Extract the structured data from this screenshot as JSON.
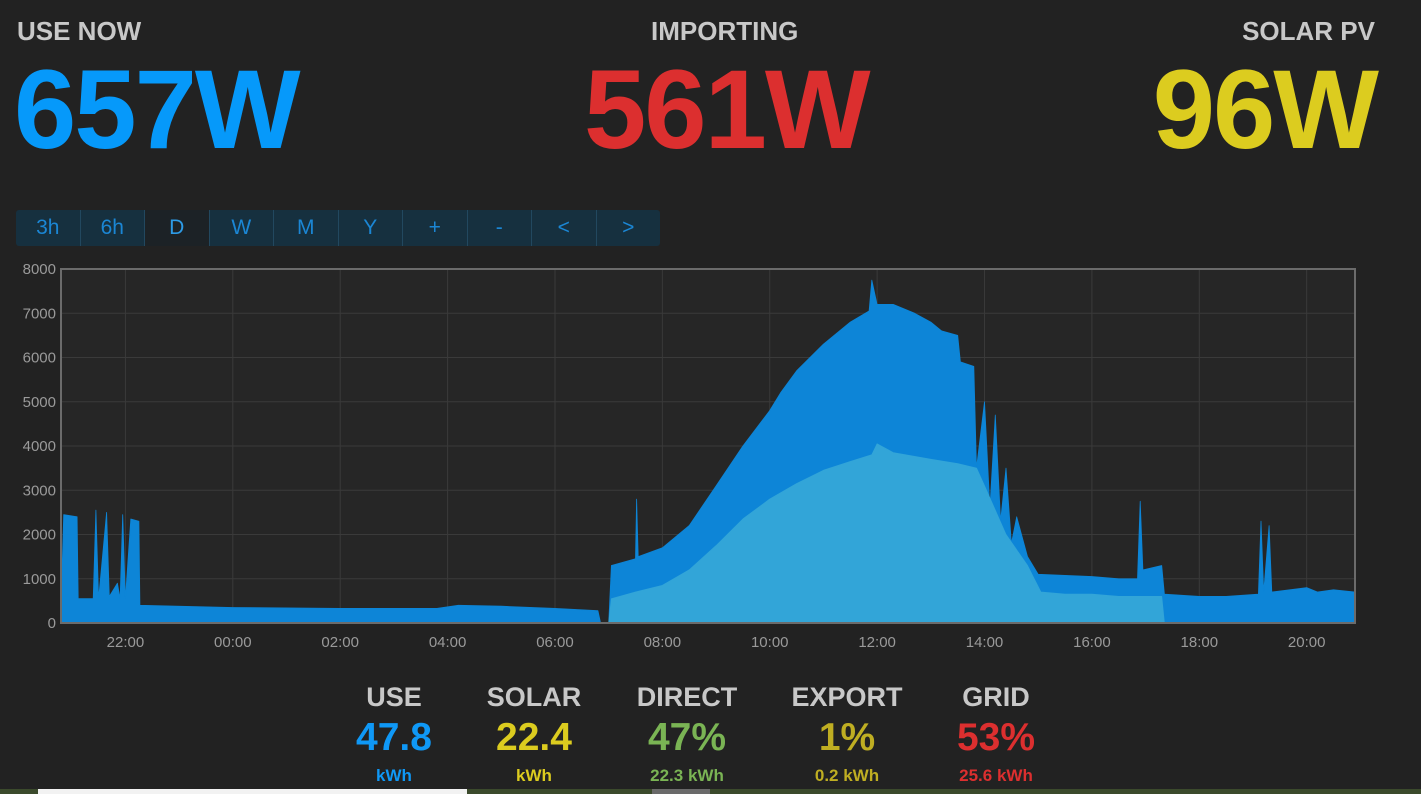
{
  "header": {
    "use_now": {
      "label": "USE NOW",
      "value": "657W",
      "color": "#0699fa"
    },
    "importing": {
      "label": "IMPORTING",
      "value": "561W",
      "color": "#dc2f2f"
    },
    "solar_pv": {
      "label": "SOLAR PV",
      "value": "96W",
      "color": "#dccc1f"
    }
  },
  "toolbar": {
    "buttons": [
      {
        "label": "3h",
        "active": false
      },
      {
        "label": "6h",
        "active": false
      },
      {
        "label": "D",
        "active": true
      },
      {
        "label": "W",
        "active": false
      },
      {
        "label": "M",
        "active": false
      },
      {
        "label": "Y",
        "active": false
      },
      {
        "label": "+",
        "active": false
      },
      {
        "label": "-",
        "active": false
      },
      {
        "label": "<",
        "active": false
      },
      {
        "label": ">",
        "active": false
      }
    ]
  },
  "chart_data": {
    "type": "area",
    "ylim": [
      0,
      8000
    ],
    "yticks": [
      "0",
      "1000",
      "2000",
      "3000",
      "4000",
      "5000",
      "6000",
      "7000",
      "8000"
    ],
    "xlim_hours": [
      20.8,
      44.9
    ],
    "xticks": [
      {
        "label": "22:00",
        "h": 22
      },
      {
        "label": "00:00",
        "h": 24
      },
      {
        "label": "02:00",
        "h": 26
      },
      {
        "label": "04:00",
        "h": 28
      },
      {
        "label": "06:00",
        "h": 30
      },
      {
        "label": "08:00",
        "h": 32
      },
      {
        "label": "10:00",
        "h": 34
      },
      {
        "label": "12:00",
        "h": 36
      },
      {
        "label": "14:00",
        "h": 38
      },
      {
        "label": "16:00",
        "h": 40
      },
      {
        "label": "18:00",
        "h": 42
      },
      {
        "label": "20:00",
        "h": 44
      }
    ],
    "grid": true,
    "series": [
      {
        "color": "#0d85d7",
        "points": [
          [
            20.8,
            350
          ],
          [
            20.85,
            2450
          ],
          [
            21.1,
            2400
          ],
          [
            21.12,
            550
          ],
          [
            21.4,
            550
          ],
          [
            21.45,
            2550
          ],
          [
            21.5,
            550
          ],
          [
            21.65,
            2500
          ],
          [
            21.7,
            600
          ],
          [
            21.85,
            900
          ],
          [
            21.9,
            550
          ],
          [
            21.95,
            2450
          ],
          [
            22.0,
            550
          ],
          [
            22.1,
            2350
          ],
          [
            22.25,
            2300
          ],
          [
            22.27,
            400
          ],
          [
            24.0,
            350
          ],
          [
            26.0,
            330
          ],
          [
            27.8,
            330
          ],
          [
            28.2,
            400
          ],
          [
            29.0,
            380
          ],
          [
            30.0,
            330
          ],
          [
            30.8,
            280
          ],
          [
            30.85,
            0
          ],
          [
            31.0,
            0
          ],
          [
            31.05,
            1300
          ],
          [
            31.5,
            1450
          ],
          [
            31.52,
            2800
          ],
          [
            31.55,
            1500
          ],
          [
            32.0,
            1700
          ],
          [
            32.5,
            2200
          ],
          [
            33.0,
            3100
          ],
          [
            33.5,
            4000
          ],
          [
            34.0,
            4800
          ],
          [
            34.2,
            5200
          ],
          [
            34.5,
            5700
          ],
          [
            35.0,
            6300
          ],
          [
            35.5,
            6800
          ],
          [
            35.85,
            7050
          ],
          [
            35.9,
            7750
          ],
          [
            36.0,
            7200
          ],
          [
            36.3,
            7200
          ],
          [
            36.7,
            7000
          ],
          [
            37.0,
            6800
          ],
          [
            37.2,
            6600
          ],
          [
            37.5,
            6500
          ],
          [
            37.55,
            5900
          ],
          [
            37.8,
            5800
          ],
          [
            37.85,
            3500
          ],
          [
            38.0,
            5000
          ],
          [
            38.1,
            2600
          ],
          [
            38.2,
            4700
          ],
          [
            38.3,
            2300
          ],
          [
            38.4,
            3500
          ],
          [
            38.5,
            1800
          ],
          [
            38.6,
            2400
          ],
          [
            38.8,
            1500
          ],
          [
            39.0,
            1100
          ],
          [
            40.0,
            1050
          ],
          [
            40.5,
            1000
          ],
          [
            40.85,
            1000
          ],
          [
            40.9,
            2750
          ],
          [
            40.95,
            1200
          ],
          [
            41.3,
            1300
          ],
          [
            41.35,
            650
          ],
          [
            42.0,
            600
          ],
          [
            42.5,
            600
          ],
          [
            43.1,
            650
          ],
          [
            43.15,
            2300
          ],
          [
            43.2,
            700
          ],
          [
            43.3,
            2200
          ],
          [
            43.35,
            700
          ],
          [
            44.0,
            800
          ],
          [
            44.2,
            700
          ],
          [
            44.5,
            750
          ],
          [
            44.9,
            700
          ]
        ]
      },
      {
        "color": "#32a5d8",
        "points": [
          [
            31.0,
            0
          ],
          [
            31.05,
            550
          ],
          [
            31.5,
            700
          ],
          [
            32.0,
            850
          ],
          [
            32.5,
            1200
          ],
          [
            33.0,
            1750
          ],
          [
            33.5,
            2350
          ],
          [
            34.0,
            2800
          ],
          [
            34.5,
            3150
          ],
          [
            35.0,
            3450
          ],
          [
            35.5,
            3650
          ],
          [
            35.9,
            3800
          ],
          [
            36.0,
            4050
          ],
          [
            36.3,
            3850
          ],
          [
            37.0,
            3700
          ],
          [
            37.5,
            3600
          ],
          [
            37.85,
            3500
          ],
          [
            38.0,
            3100
          ],
          [
            38.4,
            2000
          ],
          [
            38.8,
            1300
          ],
          [
            39.05,
            700
          ],
          [
            39.5,
            650
          ],
          [
            40.0,
            650
          ],
          [
            40.5,
            600
          ],
          [
            41.0,
            600
          ],
          [
            41.3,
            600
          ],
          [
            41.35,
            0
          ]
        ]
      }
    ]
  },
  "summary": [
    {
      "title": "USE",
      "value": "47.8",
      "sub": "kWh",
      "color": "#0f98f6"
    },
    {
      "title": "SOLAR",
      "value": "22.4",
      "sub": "kWh",
      "color": "#dccc1f"
    },
    {
      "title": "DIRECT",
      "value": "47%",
      "sub": "22.3 kWh",
      "color": "#7ab454"
    },
    {
      "title": "EXPORT",
      "value": "1%",
      "sub": "0.2 kWh",
      "color": "#bfae22"
    },
    {
      "title": "GRID",
      "value": "53%",
      "sub": "25.6 kWh",
      "color": "#dc2f2f"
    }
  ]
}
